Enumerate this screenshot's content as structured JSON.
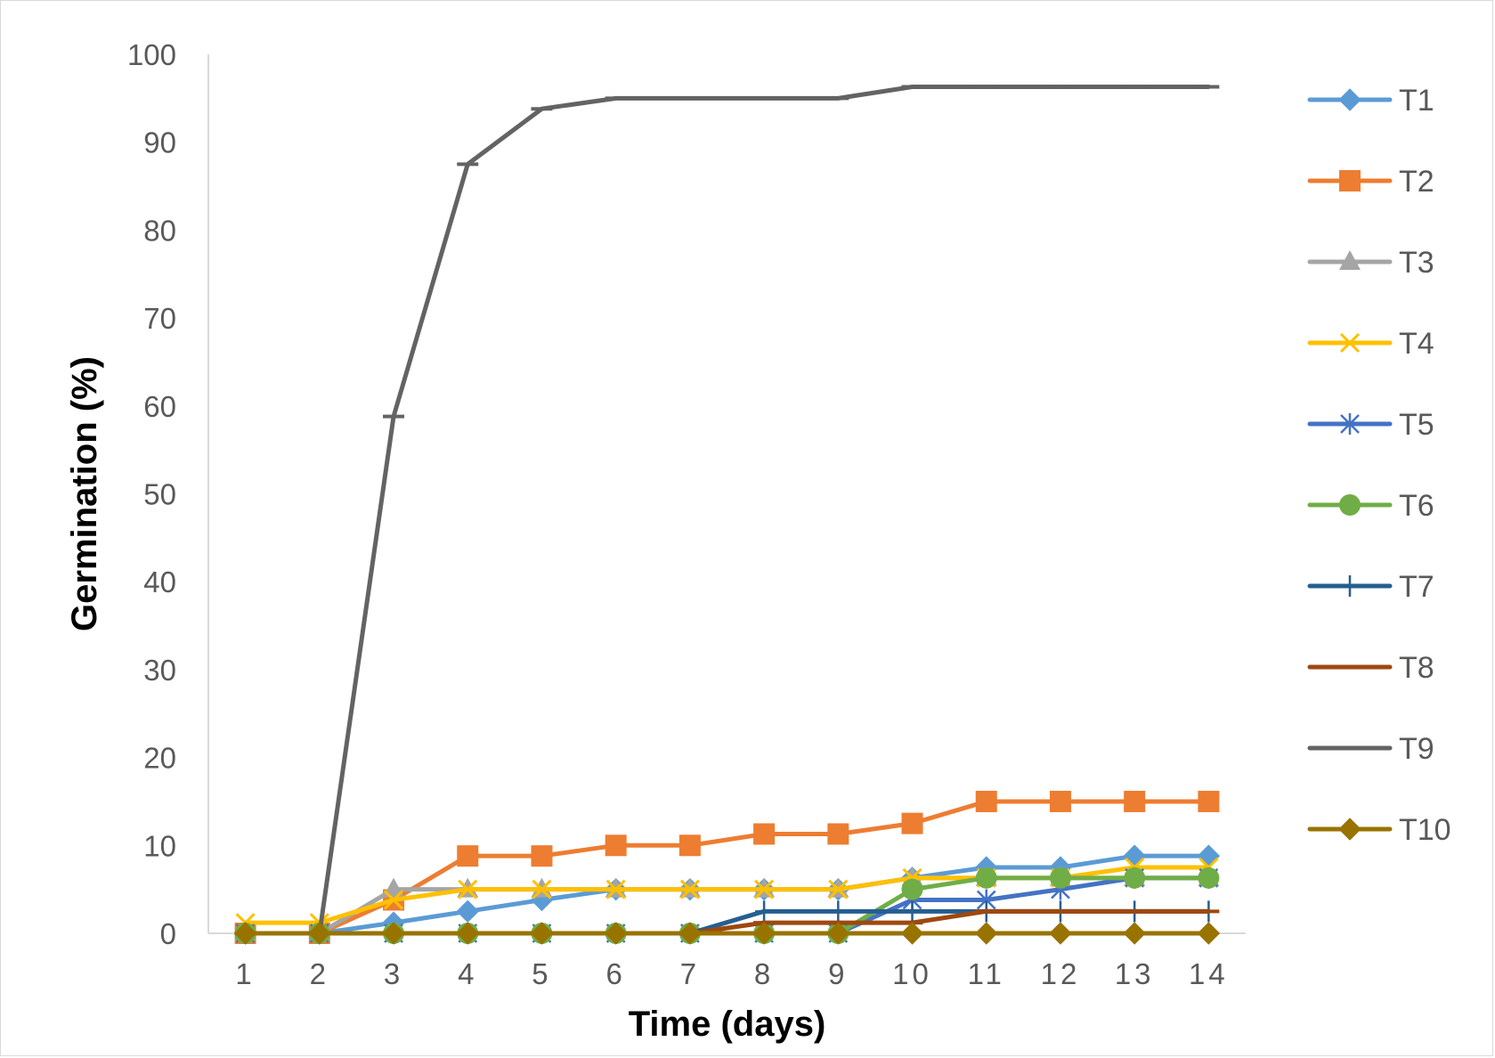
{
  "chart_data": {
    "type": "line",
    "title": "",
    "xlabel": "Time (days)",
    "ylabel": "Germination (%)",
    "x": [
      1,
      2,
      3,
      4,
      5,
      6,
      7,
      8,
      9,
      10,
      11,
      12,
      13,
      14
    ],
    "x_tick_labels": [
      "1",
      "2",
      "3",
      "4",
      "5",
      "6",
      "7",
      "8",
      "9",
      "10",
      "11",
      "12",
      "13",
      "14"
    ],
    "ylim": [
      0,
      100
    ],
    "y_ticks": [
      0,
      10,
      20,
      30,
      40,
      50,
      60,
      70,
      80,
      90,
      100
    ],
    "y_tick_labels": [
      "0",
      "10",
      "20",
      "30",
      "40",
      "50",
      "60",
      "70",
      "80",
      "90",
      "100"
    ],
    "grid": false,
    "legend_position": "right",
    "series": [
      {
        "name": "T1",
        "color": "#5B9BD5",
        "marker": "diamond",
        "values": [
          0,
          0,
          1.2,
          2.5,
          3.8,
          5,
          5,
          5,
          5,
          6.3,
          7.5,
          7.5,
          8.8,
          8.8
        ]
      },
      {
        "name": "T2",
        "color": "#ED7D31",
        "marker": "square",
        "values": [
          0,
          0,
          3.8,
          8.8,
          8.8,
          10,
          10,
          11.3,
          11.3,
          12.5,
          15,
          15,
          15,
          15
        ]
      },
      {
        "name": "T3",
        "color": "#A5A5A5",
        "marker": "triangle",
        "values": [
          0,
          0,
          5,
          5,
          5,
          5,
          5,
          5,
          5,
          6.3,
          6.3,
          6.3,
          6.3,
          6.3
        ]
      },
      {
        "name": "T4",
        "color": "#FFC000",
        "marker": "x",
        "values": [
          1.2,
          1.2,
          3.8,
          5,
          5,
          5,
          5,
          5,
          5,
          6.3,
          6.3,
          6.3,
          7.5,
          7.5
        ]
      },
      {
        "name": "T5",
        "color": "#4472C4",
        "marker": "star",
        "values": [
          0,
          0,
          0,
          0,
          0,
          0,
          0,
          0,
          0,
          3.8,
          3.8,
          5,
          6.3,
          6.3
        ]
      },
      {
        "name": "T6",
        "color": "#70AD47",
        "marker": "circle",
        "values": [
          0,
          0,
          0,
          0,
          0,
          0,
          0,
          0,
          0,
          5,
          6.3,
          6.3,
          6.3,
          6.3
        ]
      },
      {
        "name": "T7",
        "color": "#255E91",
        "marker": "plus",
        "values": [
          0,
          0,
          0,
          0,
          0,
          0,
          0,
          2.5,
          2.5,
          2.5,
          2.5,
          2.5,
          2.5,
          2.5
        ]
      },
      {
        "name": "T8",
        "color": "#9E480E",
        "marker": "dash",
        "values": [
          0,
          0,
          0,
          0,
          0,
          0,
          0,
          1.2,
          1.2,
          1.2,
          2.5,
          2.5,
          2.5,
          2.5
        ]
      },
      {
        "name": "T9",
        "color": "#636363",
        "marker": "dash",
        "values": [
          0,
          0,
          58.8,
          87.5,
          93.8,
          95,
          95,
          95,
          95,
          96.3,
          96.3,
          96.3,
          96.3,
          96.3
        ]
      },
      {
        "name": "T10",
        "color": "#997300",
        "marker": "diamond",
        "values": [
          0,
          0,
          0,
          0,
          0,
          0,
          0,
          0,
          0,
          0,
          0,
          0,
          0,
          0
        ]
      }
    ]
  }
}
